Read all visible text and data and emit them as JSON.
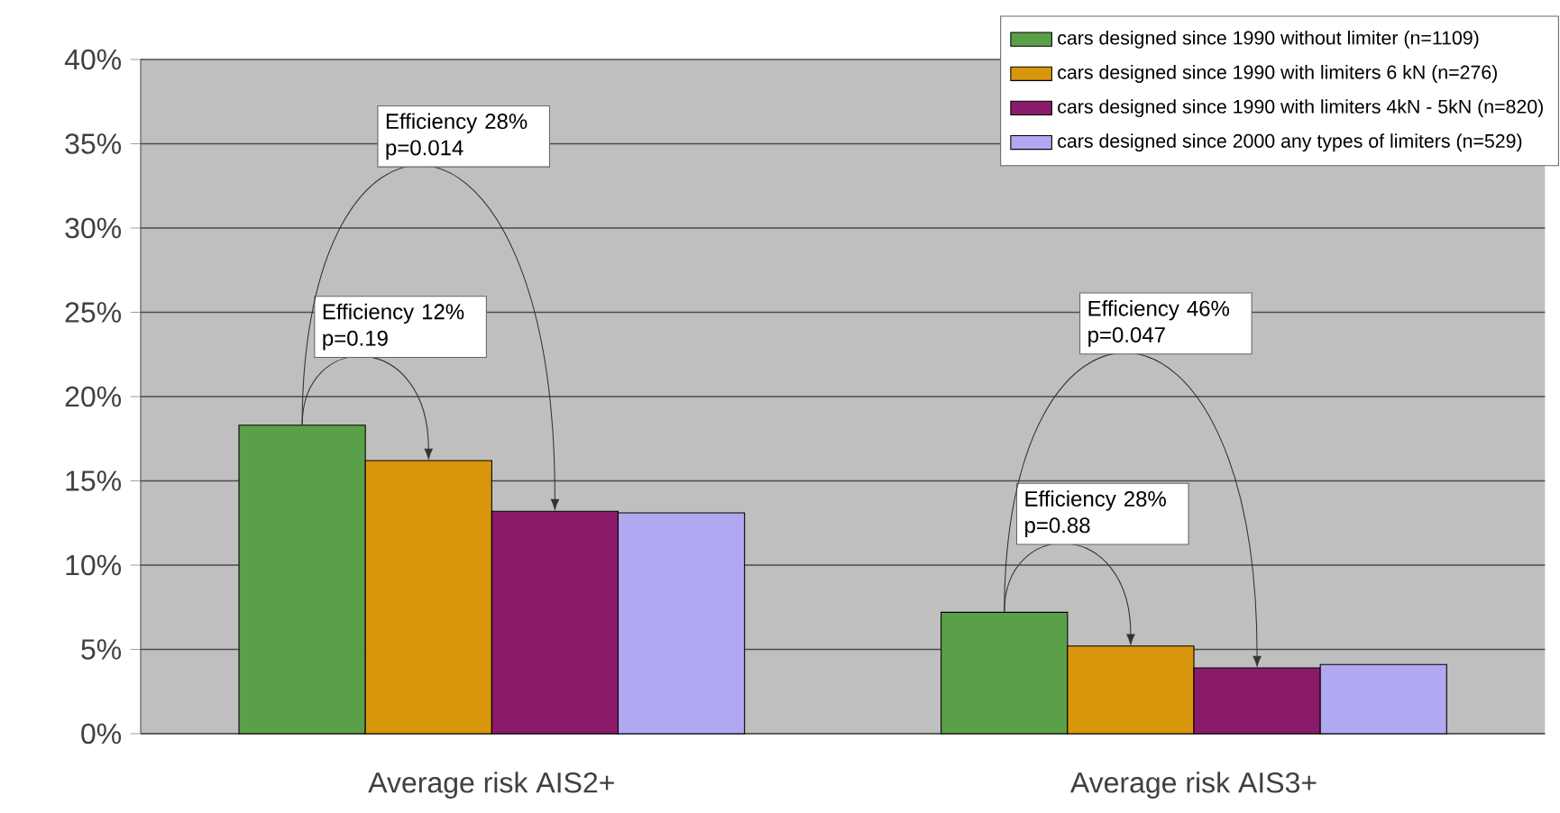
{
  "chart_data": {
    "type": "bar",
    "categories": [
      "Average risk AIS2+",
      "Average risk AIS3+"
    ],
    "series": [
      {
        "name": "cars designed since 1990 without limiter (n=1109)",
        "color": "#5aa048",
        "values": [
          18.3,
          7.2
        ]
      },
      {
        "name": "cars designed since 1990 with limiters 6 kN (n=276)",
        "color": "#d8960c",
        "values": [
          16.2,
          5.2
        ]
      },
      {
        "name": "cars designed since 1990 with limiters 4kN - 5kN (n=820)",
        "color": "#8a1a6a",
        "values": [
          13.2,
          3.9
        ]
      },
      {
        "name": "cars designed since 2000 any types of limiters (n=529)",
        "color": "#b0a8f0",
        "values": [
          13.1,
          4.1
        ]
      }
    ],
    "ylim": [
      0,
      40
    ],
    "yticks": [
      {
        "value": 0,
        "label": "0%"
      },
      {
        "value": 5,
        "label": "5%"
      },
      {
        "value": 10,
        "label": "10%"
      },
      {
        "value": 15,
        "label": "15%"
      },
      {
        "value": 20,
        "label": "20%"
      },
      {
        "value": 25,
        "label": "25%"
      },
      {
        "value": 30,
        "label": "30%"
      },
      {
        "value": 35,
        "label": "35%"
      },
      {
        "value": 40,
        "label": "40%"
      }
    ],
    "grid": "y",
    "legend": "top right",
    "annotations": [
      "Efficiency 12% p=0.19",
      "Efficiency 28% p=0.014",
      "Efficiency 28% p=0.88",
      "Efficiency 46% p=0.047"
    ]
  }
}
